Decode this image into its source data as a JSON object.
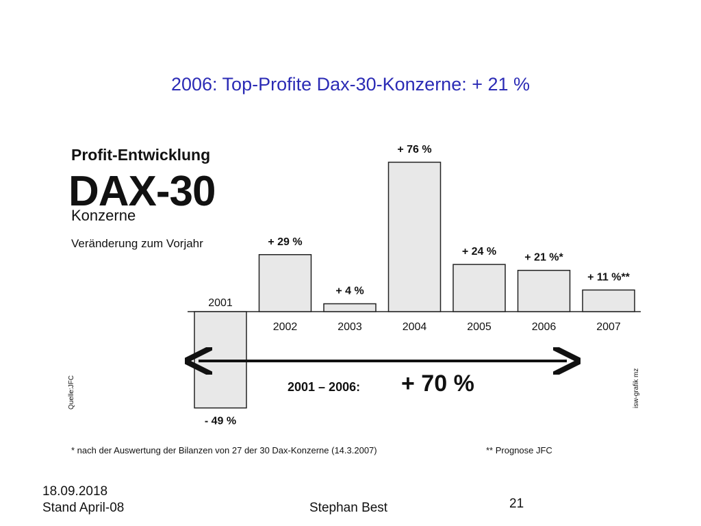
{
  "slide": {
    "title": "2006: Top-Profite Dax-30-Konzerne: + 21 %",
    "heading_profit": "Profit-Entwicklung",
    "heading_dax": "DAX-30",
    "heading_konzerne": "Konzerne",
    "heading_change": "Veränderung zum Vorjahr",
    "source": "Quelle:JFC",
    "credit": "isw-grafik mz",
    "range_label": "2001 – 2006:",
    "range_value": "+ 70 %",
    "footnote_1": "* nach der Auswertung der Bilanzen von 27 der 30 Dax-Konzerne (14.3.2007)",
    "footnote_2": "** Prognose JFC"
  },
  "footer": {
    "date": "18.09.2018",
    "stand": "Stand April-08",
    "author": "Stephan Best",
    "page": "21"
  },
  "colors": {
    "title": "#2b2bb5",
    "bar_fill": "#e8e8e8",
    "bar_stroke": "#222222"
  },
  "chart_data": {
    "type": "bar",
    "categories": [
      "2001",
      "2002",
      "2003",
      "2004",
      "2005",
      "2006",
      "2007"
    ],
    "values": [
      -49,
      29,
      4,
      76,
      24,
      21,
      11
    ],
    "data_labels": [
      "- 49 %",
      "+ 29 %",
      "+ 4 %",
      "+ 76 %",
      "+ 24 %",
      "+ 21 %*",
      "+ 11 %**"
    ],
    "title": "Profit-Entwicklung DAX-30 Konzerne",
    "ylabel": "Veränderung zum Vorjahr",
    "ylim": [
      -55,
      80
    ],
    "grid": false,
    "legend": "none"
  }
}
